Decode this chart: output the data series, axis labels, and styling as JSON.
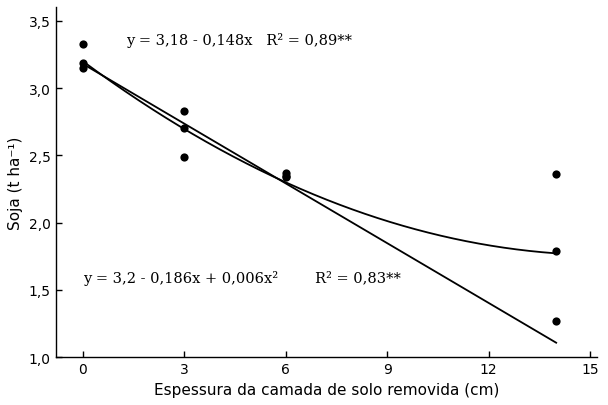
{
  "title": "",
  "xlabel": "Espessura da camada de solo removida (cm)",
  "ylabel": "Soja (t ha⁻¹)",
  "xlim": [
    -0.8,
    15.2
  ],
  "ylim": [
    1.0,
    3.6
  ],
  "xticks": [
    0,
    3,
    6,
    9,
    12,
    15
  ],
  "yticks": [
    1.0,
    1.5,
    2.0,
    2.5,
    3.0,
    3.5
  ],
  "ytick_labels": [
    "1,0",
    "1,5",
    "2,0",
    "2,5",
    "3,0",
    "3,5"
  ],
  "xtick_labels": [
    "0",
    "3",
    "6",
    "9",
    "12",
    "15"
  ],
  "data_points": {
    "x": [
      0,
      0,
      0,
      3,
      3,
      3,
      6,
      6,
      6,
      14,
      14,
      14
    ],
    "y": [
      3.33,
      3.19,
      3.15,
      2.83,
      2.7,
      2.49,
      2.37,
      2.35,
      2.34,
      2.36,
      1.79,
      1.27
    ]
  },
  "linear_a": 3.18,
  "linear_b": -0.148,
  "quad_a": 3.2,
  "quad_b": -0.186,
  "quad_c": 0.006,
  "linear_eq": "y = 3,18 - 0,148x",
  "linear_r2": "R² = 0,89**",
  "quadratic_eq": "y = 3,2 - 0,186x + 0,006x²",
  "quadratic_r2": "R² = 0,83**",
  "eq_fontsize": 10.5,
  "label_fontsize": 11,
  "tick_fontsize": 10,
  "line_color": "#000000",
  "marker_color": "#000000",
  "background_color": "#ffffff"
}
